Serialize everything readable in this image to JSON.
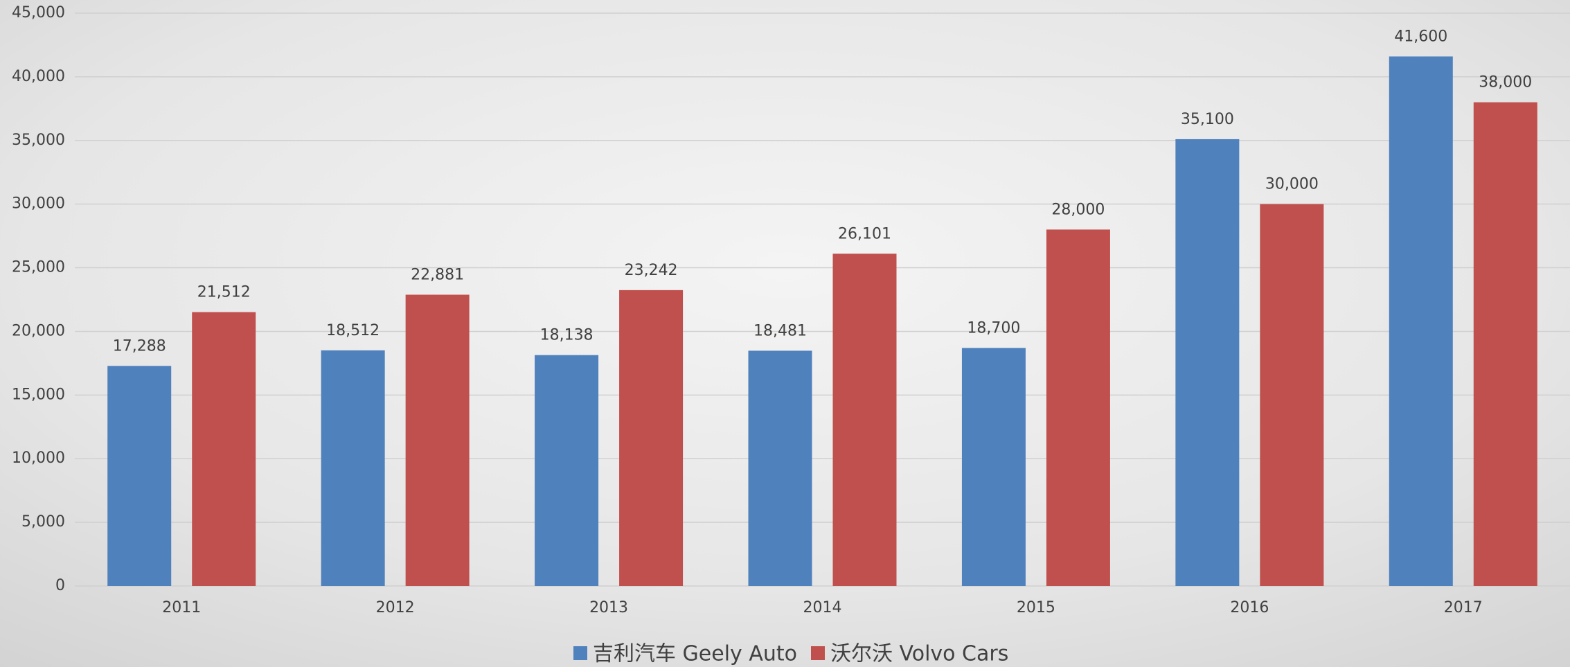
{
  "chart_data": {
    "type": "bar",
    "categories": [
      "2011",
      "2012",
      "2013",
      "2014",
      "2015",
      "2016",
      "2017"
    ],
    "series": [
      {
        "name": "吉利汽车 Geely Auto",
        "color": "#4f81bd",
        "values": [
          17288,
          18512,
          18138,
          18481,
          18700,
          35100,
          41600
        ],
        "value_labels": [
          "17,288",
          "18,512",
          "18,138",
          "18,481",
          "18,700",
          "35,100",
          "41,600"
        ]
      },
      {
        "name": "沃尔沃 Volvo Cars",
        "color": "#c0504d",
        "values": [
          21512,
          22881,
          23242,
          26101,
          28000,
          30000,
          38000
        ],
        "value_labels": [
          "21,512",
          "22,881",
          "23,242",
          "26,101",
          "28,000",
          "30,000",
          "38,000"
        ]
      }
    ],
    "ylim": [
      0,
      45000
    ],
    "yticks": [
      0,
      {
        "value": 5000,
        "label": "5,000"
      },
      {
        "value": 10000,
        "label": "10,000"
      },
      {
        "value": 15000,
        "label": "15,000"
      },
      {
        "value": 20000,
        "label": "20,000"
      },
      {
        "value": 25000,
        "label": "25,000"
      },
      {
        "value": 30000,
        "label": "30,000"
      },
      {
        "value": 35000,
        "label": "35,000"
      },
      {
        "value": 40000,
        "label": "40,000"
      },
      {
        "value": 45000,
        "label": "45,000"
      }
    ],
    "grid": true,
    "legend": "bottom"
  }
}
